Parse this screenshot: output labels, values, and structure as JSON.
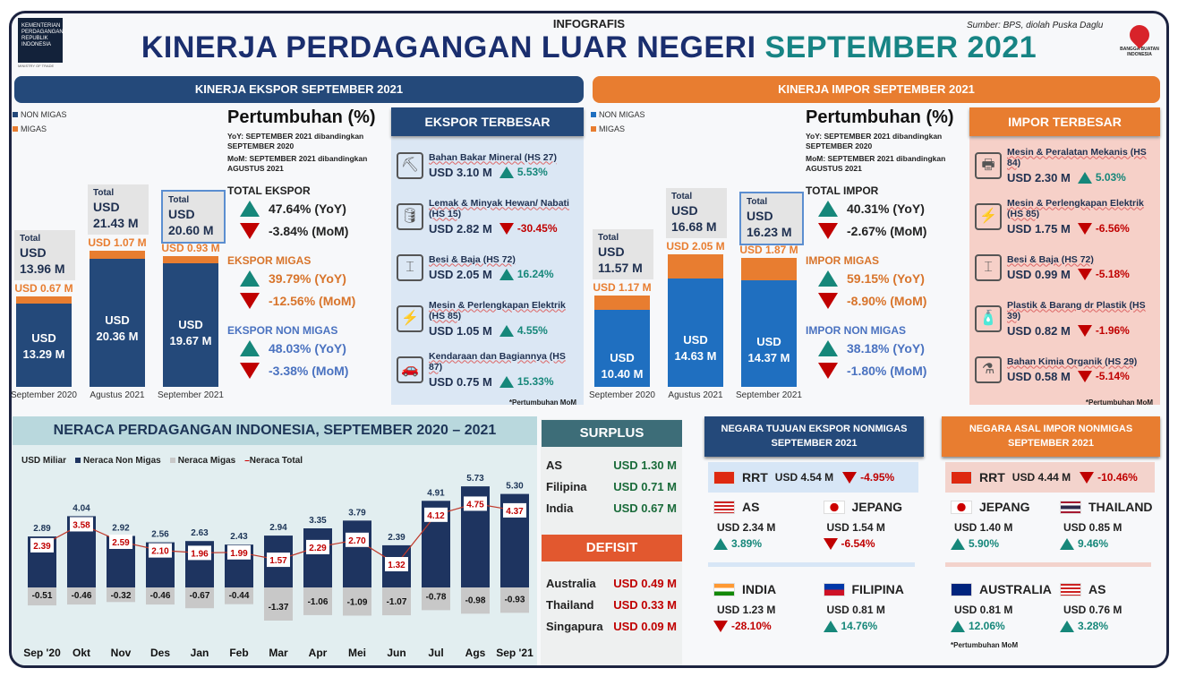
{
  "header": {
    "logo_text": "KEMENTERIAN PERDAGANGAN REPUBLIK INDONESIA",
    "logo_sub": "MINISTRY OF TRADE",
    "label": "INFOGRAFIS",
    "title": "KINERJA PERDAGANGAN LUAR NEGERI",
    "title_highlight": "SEPTEMBER 2021",
    "source": "Sumber: BPS, diolah Puska Daglu",
    "bangga": "BANGGA BUATAN INDONESIA"
  },
  "colors": {
    "navy": "#24497a",
    "orange": "#e87d30",
    "teal": "#16877a",
    "red": "#c00000",
    "import_blue": "#1f6fc0"
  },
  "ekspor": {
    "header": "KINERJA EKSPOR SEPTEMBER 2021",
    "legend": [
      "NON MIGAS",
      "MIGAS"
    ],
    "bars": [
      {
        "period": "September 2020",
        "total_label": "Total",
        "total": "USD",
        "total_val": "13.96 M",
        "migas": "USD 0.67 M",
        "nonmigas_a": "USD",
        "nonmigas_b": "13.29 M",
        "nonmigas_v": 13.29,
        "migas_v": 0.67
      },
      {
        "period": "Agustus 2021",
        "total_label": "Total",
        "total": "USD",
        "total_val": "21.43 M",
        "migas": "USD 1.07 M",
        "nonmigas_a": "USD",
        "nonmigas_b": "20.36 M",
        "nonmigas_v": 20.36,
        "migas_v": 1.07
      },
      {
        "period": "September 2021",
        "total_label": "Total",
        "total": "USD",
        "total_val": "20.60 M",
        "migas": "USD 0.93 M",
        "nonmigas_a": "USD",
        "nonmigas_b": "19.67 M",
        "nonmigas_v": 19.67,
        "migas_v": 0.93
      }
    ],
    "growth": {
      "title": "Pertumbuhan (%)",
      "yoy_note": "YoY:  SEPTEMBER 2021 dibandingkan SEPTEMBER 2020",
      "mom_note": "MoM:  SEPTEMBER 2021 dibandingkan AGUSTUS 2021",
      "sections": [
        {
          "name": "TOTAL EKSPOR",
          "yoy": "47.64% (YoY)",
          "mom": "-3.84% (MoM)",
          "color": "#222"
        },
        {
          "name": "EKSPOR MIGAS",
          "yoy": "39.79% (YoY)",
          "mom": "-12.56% (MoM)",
          "color": "#d8742b"
        },
        {
          "name": "EKSPOR NON MIGAS",
          "yoy": "48.03% (YoY)",
          "mom": "-3.38% (MoM)",
          "color": "#4a72c0"
        }
      ]
    },
    "top": {
      "header": "EKSPOR TERBESAR",
      "footnote": "*Pertumbuhan MoM",
      "items": [
        {
          "icon": "mining-cart-icon",
          "glyph": "⛏",
          "name": "Bahan Bakar Mineral (HS 27)",
          "value": "USD 3.10 M",
          "growth": "5.53%",
          "dir": "up"
        },
        {
          "icon": "oil-bottle-icon",
          "glyph": "🛢",
          "name": "Lemak & Minyak Hewan/ Nabati (HS 15)",
          "value": "USD 2.82 M",
          "growth": "-30.45%",
          "dir": "down"
        },
        {
          "icon": "steel-beam-icon",
          "glyph": "⌶",
          "name": "Besi & Baja (HS 72)",
          "value": "USD 2.05 M",
          "growth": "16.24%",
          "dir": "up"
        },
        {
          "icon": "electric-plug-icon",
          "glyph": "⚡",
          "name": "Mesin & Perlengkapan Elektrik (HS 85)",
          "value": "USD 1.05 M",
          "growth": "4.55%",
          "dir": "up"
        },
        {
          "icon": "car-icon",
          "glyph": "🚗",
          "name": "Kendaraan dan Bagiannya (HS 87)",
          "value": "USD 0.75 M",
          "growth": "15.33%",
          "dir": "up"
        }
      ]
    }
  },
  "impor": {
    "header": "KINERJA IMPOR SEPTEMBER 2021",
    "legend": [
      "NON MIGAS",
      "MIGAS"
    ],
    "bars": [
      {
        "period": "September 2020",
        "total_label": "Total",
        "total": "USD",
        "total_val": "11.57 M",
        "migas": "USD 1.17 M",
        "nonmigas_a": "USD",
        "nonmigas_b": "10.40 M",
        "nonmigas_v": 10.4,
        "migas_v": 1.17
      },
      {
        "period": "Agustus 2021",
        "total_label": "Total",
        "total": "USD",
        "total_val": "16.68 M",
        "migas": "USD 2.05 M",
        "nonmigas_a": "USD",
        "nonmigas_b": "14.63 M",
        "nonmigas_v": 14.63,
        "migas_v": 2.05
      },
      {
        "period": "September 2021",
        "total_label": "Total",
        "total": "USD",
        "total_val": "16.23 M",
        "migas": "USD 1.87 M",
        "nonmigas_a": "USD",
        "nonmigas_b": "14.37 M",
        "nonmigas_v": 14.37,
        "migas_v": 1.87
      }
    ],
    "growth": {
      "title": "Pertumbuhan (%)",
      "yoy_note": "YoY:  SEPTEMBER 2021 dibandingkan SEPTEMBER 2020",
      "mom_note": "MoM:  SEPTEMBER 2021 dibandingkan AGUSTUS 2021",
      "sections": [
        {
          "name": "TOTAL IMPOR",
          "yoy": "40.31% (YoY)",
          "mom": "-2.67% (MoM)",
          "color": "#222"
        },
        {
          "name": "IMPOR MIGAS",
          "yoy": "59.15% (YoY)",
          "mom": "-8.90% (MoM)",
          "color": "#d8742b"
        },
        {
          "name": "IMPOR NON MIGAS",
          "yoy": "38.18% (YoY)",
          "mom": "-1.80% (MoM)",
          "color": "#4a72c0"
        }
      ]
    },
    "top": {
      "header": "IMPOR TERBESAR",
      "footnote": "*Pertumbuhan MoM",
      "items": [
        {
          "icon": "printer-icon",
          "glyph": "🖶",
          "name": "Mesin & Peralatan Mekanis (HS 84)",
          "value": "USD 2.30 M",
          "growth": "5.03%",
          "dir": "up"
        },
        {
          "icon": "electric-plug-icon",
          "glyph": "⚡",
          "name": "Mesin & Perlengkapan Elektrik (HS 85)",
          "value": "USD 1.75 M",
          "growth": "-6.56%",
          "dir": "down"
        },
        {
          "icon": "steel-beam-icon",
          "glyph": "⌶",
          "name": "Besi & Baja (HS 72)",
          "value": "USD 0.99 M",
          "growth": "-5.18%",
          "dir": "down"
        },
        {
          "icon": "plastic-bottle-icon",
          "glyph": "🧴",
          "name": "Plastik & Barang dr Plastik (HS 39)",
          "value": "USD 0.82 M",
          "growth": "-1.96%",
          "dir": "down"
        },
        {
          "icon": "flask-icon",
          "glyph": "⚗",
          "name": "Bahan Kimia Organik (HS 29)",
          "value": "USD 0.58 M",
          "growth": "-5.14%",
          "dir": "down"
        }
      ]
    }
  },
  "neraca": {
    "title": "NERACA PERDAGANGAN INDONESIA, SEPTEMBER 2020 –  2021"
  },
  "chart_data": {
    "type": "bar",
    "title": "NERACA PERDAGANGAN INDONESIA, SEPTEMBER 2020 – 2021",
    "ylabel": "USD Miliar",
    "legend": [
      "Neraca Non Migas",
      "Neraca Migas",
      "Neraca Total"
    ],
    "categories": [
      "Sep '20",
      "Okt",
      "Nov",
      "Des",
      "Jan",
      "Feb",
      "Mar",
      "Apr",
      "Mei",
      "Jun",
      "Jul",
      "Ags",
      "Sep '21"
    ],
    "series": [
      {
        "name": "Neraca Non Migas",
        "type": "bar",
        "values": [
          2.89,
          4.04,
          2.92,
          2.56,
          2.63,
          2.43,
          2.94,
          3.35,
          3.79,
          2.39,
          4.91,
          5.73,
          5.3
        ]
      },
      {
        "name": "Neraca Migas",
        "type": "bar",
        "values": [
          -0.51,
          -0.46,
          -0.32,
          -0.46,
          -0.67,
          -0.44,
          -1.37,
          -1.06,
          -1.09,
          -1.07,
          -0.78,
          -0.98,
          -0.93
        ]
      },
      {
        "name": "Neraca Total",
        "type": "line",
        "values": [
          2.39,
          3.58,
          2.59,
          2.1,
          1.96,
          1.99,
          1.57,
          2.29,
          2.7,
          1.32,
          4.12,
          4.75,
          4.37
        ]
      }
    ]
  },
  "surplus": {
    "header": "SURPLUS",
    "rows": [
      {
        "country": "AS",
        "value": "USD 1.30 M"
      },
      {
        "country": "Filipina",
        "value": "USD 0.71 M"
      },
      {
        "country": "India",
        "value": "USD 0.67 M"
      }
    ]
  },
  "defisit": {
    "header": "DEFISIT",
    "rows": [
      {
        "country": "Australia",
        "value": "USD 0.49 M"
      },
      {
        "country": "Thailand",
        "value": "USD 0.33 M"
      },
      {
        "country": "Singapura",
        "value": "USD 0.09 M"
      }
    ]
  },
  "tujuan": {
    "header": "NEGARA TUJUAN EKSPOR NONMIGAS SEPTEMBER 2021",
    "top": {
      "flag": "cn",
      "country": "RRT",
      "value": "USD 4.54 M",
      "growth": "-4.95%",
      "dir": "down"
    },
    "items": [
      {
        "flag": "us",
        "country": "AS",
        "value": "USD 2.34 M",
        "growth": "3.89%",
        "dir": "up"
      },
      {
        "flag": "jp",
        "country": "JEPANG",
        "value": "USD 1.54 M",
        "growth": "-6.54%",
        "dir": "down"
      },
      {
        "flag": "in",
        "country": "INDIA",
        "value": "USD 1.23 M",
        "growth": "-28.10%",
        "dir": "down"
      },
      {
        "flag": "ph",
        "country": "FILIPINA",
        "value": "USD 0.81 M",
        "growth": "14.76%",
        "dir": "up"
      }
    ]
  },
  "asal": {
    "header": "NEGARA ASAL IMPOR NONMIGAS SEPTEMBER 2021",
    "footnote": "*Pertumbuhan MoM",
    "top": {
      "flag": "cn",
      "country": "RRT",
      "value": "USD 4.44 M",
      "growth": "-10.46%",
      "dir": "down"
    },
    "items": [
      {
        "flag": "jp",
        "country": "JEPANG",
        "value": "USD 1.40 M",
        "growth": "5.90%",
        "dir": "up"
      },
      {
        "flag": "th",
        "country": "THAILAND",
        "value": "USD 0.85 M",
        "growth": "9.46%",
        "dir": "up"
      },
      {
        "flag": "au",
        "country": "AUSTRALIA",
        "value": "USD 0.81 M",
        "growth": "12.06%",
        "dir": "up"
      },
      {
        "flag": "us",
        "country": "AS",
        "value": "USD 0.76 M",
        "growth": "3.28%",
        "dir": "up"
      }
    ]
  }
}
